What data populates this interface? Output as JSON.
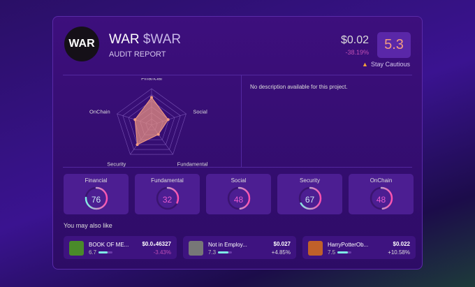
{
  "header": {
    "logo_text": "WAR",
    "name": "WAR",
    "symbol": "$WAR",
    "subtitle": "AUDIT REPORT",
    "price": "$0.02",
    "change": "-38.19%",
    "score": "5.3",
    "warning": "Stay Cautious"
  },
  "description": "No description available for this project.",
  "chart_data": {
    "type": "radar",
    "axes": [
      "Financial",
      "Social",
      "Fundamental",
      "Security",
      "OnChain"
    ],
    "values": [
      76,
      48,
      32,
      67,
      48
    ],
    "range": [
      0,
      100
    ]
  },
  "metrics": [
    {
      "label": "Financial",
      "value": "76"
    },
    {
      "label": "Fundamental",
      "value": "32"
    },
    {
      "label": "Social",
      "value": "48"
    },
    {
      "label": "Security",
      "value": "67"
    },
    {
      "label": "OnChain",
      "value": "48"
    }
  ],
  "also_title": "You may also like",
  "recommendations": [
    {
      "name": "BOOK OF ME...",
      "score": "6.7",
      "score_pct": 67,
      "price": "$0.0₃46327",
      "change": "-3.43%",
      "icon_color": "#4a8a2a",
      "change_color": "#c04fb5"
    },
    {
      "name": "Not in Employ...",
      "score": "7.3",
      "score_pct": 73,
      "price": "$0.027",
      "change": "+4.85%",
      "icon_color": "#777777",
      "change_color": "#dddddd"
    },
    {
      "name": "HarryPotterOb...",
      "score": "7.5",
      "score_pct": 75,
      "price": "$0.022",
      "change": "+10.58%",
      "icon_color": "#c0602a",
      "change_color": "#dddddd"
    }
  ]
}
